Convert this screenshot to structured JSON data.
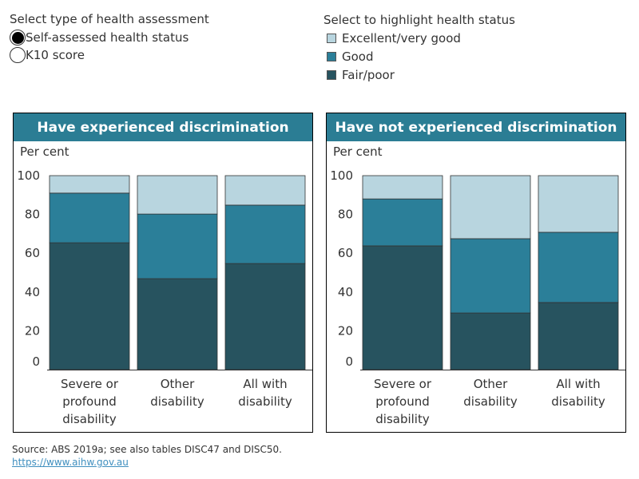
{
  "controls": {
    "assessment_title": "Select type of health assessment",
    "options": [
      {
        "label": "Self-assessed health status",
        "selected": true
      },
      {
        "label": "K10 score",
        "selected": false
      }
    ],
    "legend_title": "Select to highlight health status"
  },
  "colors": {
    "excellent": "#b8d5df",
    "good": "#2b7f99",
    "fair": "#27535f"
  },
  "chart_data": [
    {
      "type": "bar",
      "stacked": true,
      "title": "Have experienced discrimination",
      "ylabel": "Per cent",
      "ylim": [
        0,
        100
      ],
      "yticks": [
        "0",
        "20",
        "40",
        "60",
        "80",
        "100"
      ],
      "categories": [
        [
          "Severe or",
          "profound",
          "disability"
        ],
        [
          "Other",
          "disability"
        ],
        [
          "All with",
          "disability"
        ]
      ],
      "series": [
        {
          "name": "Fair/poor",
          "key": "fair",
          "values": [
            65.4,
            46.9,
            54.7
          ]
        },
        {
          "name": "Good",
          "key": "good",
          "values": [
            25.6,
            33.3,
            30.1
          ]
        },
        {
          "name": "Excellent/very good",
          "key": "excellent",
          "values": [
            9.0,
            19.8,
            15.2
          ]
        }
      ]
    },
    {
      "type": "bar",
      "stacked": true,
      "title": "Have not experienced discrimination",
      "ylabel": "Per cent",
      "ylim": [
        0,
        100
      ],
      "yticks": [
        "0",
        "20",
        "40",
        "60",
        "80",
        "100"
      ],
      "categories": [
        [
          "Severe or",
          "profound",
          "disability"
        ],
        [
          "Other",
          "disability"
        ],
        [
          "All with",
          "disability"
        ]
      ],
      "series": [
        {
          "name": "Fair/poor",
          "key": "fair",
          "values": [
            63.8,
            29.2,
            34.6
          ]
        },
        {
          "name": "Good",
          "key": "good",
          "values": [
            24.2,
            38.3,
            36.2
          ]
        },
        {
          "name": "Excellent/very good",
          "key": "excellent",
          "values": [
            12.0,
            32.5,
            29.2
          ]
        }
      ]
    }
  ],
  "legend": [
    "Excellent/very good",
    "Good",
    "Fair/poor"
  ],
  "footer": {
    "source": "Source: ABS 2019a; see also tables DISC47 and DISC50.",
    "link": "https://www.aihw.gov.au"
  }
}
